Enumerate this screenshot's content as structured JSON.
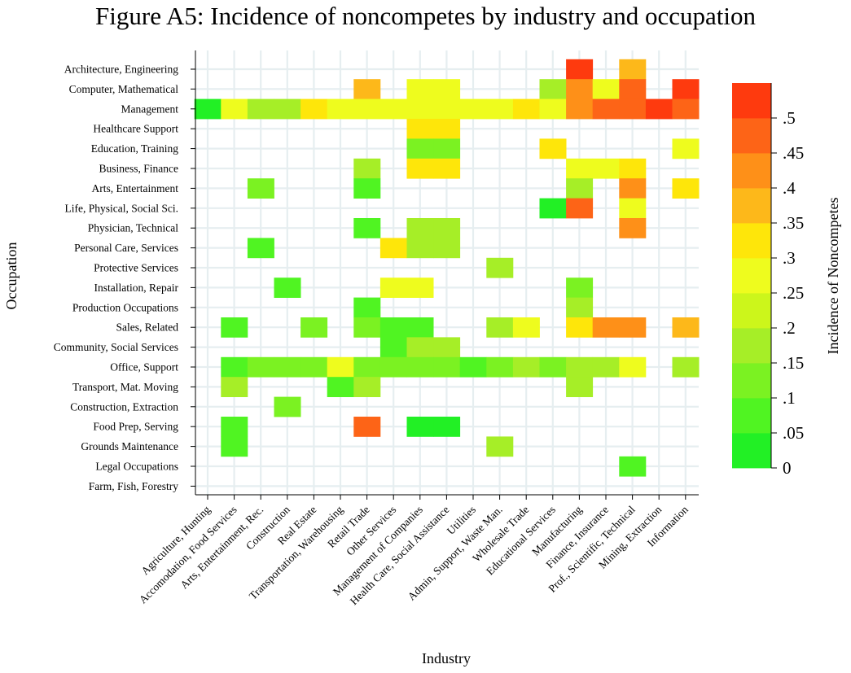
{
  "title": "Figure A5: Incidence of noncompetes by industry and occupation",
  "chart_data": {
    "type": "heatmap",
    "title": "Figure A5: Incidence of noncompetes by industry and occupation",
    "xlabel": "Industry",
    "ylabel": "Occupation",
    "colorbar_label": "Incidence of Noncompetes",
    "colorbar_range": [
      0,
      0.5
    ],
    "colorbar_ticks": [
      "0",
      ".05",
      ".1",
      ".15",
      ".2",
      ".25",
      ".3",
      ".35",
      ".4",
      ".45",
      ".5"
    ],
    "colorbar_colors": [
      "#22f025",
      "#50f422",
      "#7bf222",
      "#a6ee27",
      "#ccf61b",
      "#eefc1e",
      "#fee60a",
      "#fdb81a",
      "#fe9018",
      "#fd6417",
      "#fe3a0e"
    ],
    "grid": true,
    "x_categories": [
      "Agriculture, Hunting",
      "Accomodation, Food Services",
      "Arts, Entertainment, Rec.",
      "Construction",
      "Real Estate",
      "Transportation, Warehousing",
      "Retail Trade",
      "Other Services",
      "Management of Companies",
      "Health Care, Social Assistance",
      "Utilities",
      "Admin, Support, Waste Man.",
      "Wholesale Trade",
      "Educational Services",
      "Manufacturing",
      "Finance, Insurance",
      "Prof., Scientific, Technical",
      "Mining, Extraction",
      "Information"
    ],
    "y_categories": [
      "Architecture, Engineering",
      "Computer, Mathematical",
      "Management",
      "Healthcare Support",
      "Education, Training",
      "Business, Finance",
      "Arts, Entertainment",
      "Life, Physical, Social Sci.",
      "Physician, Technical",
      "Personal Care, Services",
      "Protective Services",
      "Installation, Repair",
      "Production Occupations",
      "Sales, Related",
      "Community, Social Services",
      "Office, Support",
      "Transport, Mat. Moving",
      "Construction, Extraction",
      "Food Prep, Serving",
      "Grounds Maintenance",
      "Legal Occupations",
      "Farm, Fish, Forestry"
    ],
    "cells": [
      {
        "y": "Architecture, Engineering",
        "x": "Manufacturing",
        "value": 0.48
      },
      {
        "y": "Architecture, Engineering",
        "x": "Prof., Scientific, Technical",
        "value": 0.33
      },
      {
        "y": "Computer, Mathematical",
        "x": "Retail Trade",
        "value": 0.33
      },
      {
        "y": "Computer, Mathematical",
        "x": "Management of Companies",
        "value": 0.23
      },
      {
        "y": "Computer, Mathematical",
        "x": "Health Care, Social Assistance",
        "value": 0.23
      },
      {
        "y": "Computer, Mathematical",
        "x": "Educational Services",
        "value": 0.18
      },
      {
        "y": "Computer, Mathematical",
        "x": "Manufacturing",
        "value": 0.38
      },
      {
        "y": "Computer, Mathematical",
        "x": "Finance, Insurance",
        "value": 0.23
      },
      {
        "y": "Computer, Mathematical",
        "x": "Prof., Scientific, Technical",
        "value": 0.43
      },
      {
        "y": "Computer, Mathematical",
        "x": "Information",
        "value": 0.48
      },
      {
        "y": "Management",
        "x": "Agriculture, Hunting",
        "value": 0.03
      },
      {
        "y": "Management",
        "x": "Accomodation, Food Services",
        "value": 0.23
      },
      {
        "y": "Management",
        "x": "Arts, Entertainment, Rec.",
        "value": 0.18
      },
      {
        "y": "Management",
        "x": "Construction",
        "value": 0.18
      },
      {
        "y": "Management",
        "x": "Real Estate",
        "value": 0.28
      },
      {
        "y": "Management",
        "x": "Transportation, Warehousing",
        "value": 0.23
      },
      {
        "y": "Management",
        "x": "Retail Trade",
        "value": 0.23
      },
      {
        "y": "Management",
        "x": "Other Services",
        "value": 0.23
      },
      {
        "y": "Management",
        "x": "Management of Companies",
        "value": 0.23
      },
      {
        "y": "Management",
        "x": "Health Care, Social Assistance",
        "value": 0.23
      },
      {
        "y": "Management",
        "x": "Utilities",
        "value": 0.23
      },
      {
        "y": "Management",
        "x": "Admin, Support, Waste Man.",
        "value": 0.23
      },
      {
        "y": "Management",
        "x": "Wholesale Trade",
        "value": 0.28
      },
      {
        "y": "Management",
        "x": "Educational Services",
        "value": 0.23
      },
      {
        "y": "Management",
        "x": "Manufacturing",
        "value": 0.38
      },
      {
        "y": "Management",
        "x": "Finance, Insurance",
        "value": 0.43
      },
      {
        "y": "Management",
        "x": "Prof., Scientific, Technical",
        "value": 0.43
      },
      {
        "y": "Management",
        "x": "Mining, Extraction",
        "value": 0.48
      },
      {
        "y": "Management",
        "x": "Information",
        "value": 0.43
      },
      {
        "y": "Healthcare Support",
        "x": "Management of Companies",
        "value": 0.28
      },
      {
        "y": "Healthcare Support",
        "x": "Health Care, Social Assistance",
        "value": 0.28
      },
      {
        "y": "Education, Training",
        "x": "Management of Companies",
        "value": 0.13
      },
      {
        "y": "Education, Training",
        "x": "Health Care, Social Assistance",
        "value": 0.13
      },
      {
        "y": "Education, Training",
        "x": "Educational Services",
        "value": 0.28
      },
      {
        "y": "Education, Training",
        "x": "Information",
        "value": 0.23
      },
      {
        "y": "Business, Finance",
        "x": "Retail Trade",
        "value": 0.18
      },
      {
        "y": "Business, Finance",
        "x": "Management of Companies",
        "value": 0.28
      },
      {
        "y": "Business, Finance",
        "x": "Health Care, Social Assistance",
        "value": 0.28
      },
      {
        "y": "Business, Finance",
        "x": "Manufacturing",
        "value": 0.23
      },
      {
        "y": "Business, Finance",
        "x": "Finance, Insurance",
        "value": 0.23
      },
      {
        "y": "Business, Finance",
        "x": "Prof., Scientific, Technical",
        "value": 0.28
      },
      {
        "y": "Arts, Entertainment",
        "x": "Arts, Entertainment, Rec.",
        "value": 0.13
      },
      {
        "y": "Arts, Entertainment",
        "x": "Retail Trade",
        "value": 0.08
      },
      {
        "y": "Arts, Entertainment",
        "x": "Manufacturing",
        "value": 0.18
      },
      {
        "y": "Arts, Entertainment",
        "x": "Prof., Scientific, Technical",
        "value": 0.38
      },
      {
        "y": "Arts, Entertainment",
        "x": "Information",
        "value": 0.28
      },
      {
        "y": "Life, Physical, Social Sci.",
        "x": "Educational Services",
        "value": 0.03
      },
      {
        "y": "Life, Physical, Social Sci.",
        "x": "Manufacturing",
        "value": 0.43
      },
      {
        "y": "Life, Physical, Social Sci.",
        "x": "Prof., Scientific, Technical",
        "value": 0.23
      },
      {
        "y": "Physician, Technical",
        "x": "Retail Trade",
        "value": 0.08
      },
      {
        "y": "Physician, Technical",
        "x": "Management of Companies",
        "value": 0.18
      },
      {
        "y": "Physician, Technical",
        "x": "Health Care, Social Assistance",
        "value": 0.18
      },
      {
        "y": "Physician, Technical",
        "x": "Prof., Scientific, Technical",
        "value": 0.38
      },
      {
        "y": "Personal Care, Services",
        "x": "Arts, Entertainment, Rec.",
        "value": 0.08
      },
      {
        "y": "Personal Care, Services",
        "x": "Other Services",
        "value": 0.28
      },
      {
        "y": "Personal Care, Services",
        "x": "Management of Companies",
        "value": 0.18
      },
      {
        "y": "Personal Care, Services",
        "x": "Health Care, Social Assistance",
        "value": 0.18
      },
      {
        "y": "Protective Services",
        "x": "Admin, Support, Waste Man.",
        "value": 0.18
      },
      {
        "y": "Installation, Repair",
        "x": "Construction",
        "value": 0.08
      },
      {
        "y": "Installation, Repair",
        "x": "Other Services",
        "value": 0.23
      },
      {
        "y": "Installation, Repair",
        "x": "Management of Companies",
        "value": 0.23
      },
      {
        "y": "Installation, Repair",
        "x": "Manufacturing",
        "value": 0.13
      },
      {
        "y": "Production Occupations",
        "x": "Retail Trade",
        "value": 0.08
      },
      {
        "y": "Production Occupations",
        "x": "Manufacturing",
        "value": 0.18
      },
      {
        "y": "Sales, Related",
        "x": "Accomodation, Food Services",
        "value": 0.08
      },
      {
        "y": "Sales, Related",
        "x": "Real Estate",
        "value": 0.13
      },
      {
        "y": "Sales, Related",
        "x": "Retail Trade",
        "value": 0.13
      },
      {
        "y": "Sales, Related",
        "x": "Other Services",
        "value": 0.08
      },
      {
        "y": "Sales, Related",
        "x": "Management of Companies",
        "value": 0.08
      },
      {
        "y": "Sales, Related",
        "x": "Admin, Support, Waste Man.",
        "value": 0.18
      },
      {
        "y": "Sales, Related",
        "x": "Wholesale Trade",
        "value": 0.23
      },
      {
        "y": "Sales, Related",
        "x": "Manufacturing",
        "value": 0.28
      },
      {
        "y": "Sales, Related",
        "x": "Finance, Insurance",
        "value": 0.38
      },
      {
        "y": "Sales, Related",
        "x": "Prof., Scientific, Technical",
        "value": 0.38
      },
      {
        "y": "Sales, Related",
        "x": "Information",
        "value": 0.33
      },
      {
        "y": "Community, Social Services",
        "x": "Other Services",
        "value": 0.08
      },
      {
        "y": "Community, Social Services",
        "x": "Management of Companies",
        "value": 0.18
      },
      {
        "y": "Community, Social Services",
        "x": "Health Care, Social Assistance",
        "value": 0.18
      },
      {
        "y": "Office, Support",
        "x": "Accomodation, Food Services",
        "value": 0.08
      },
      {
        "y": "Office, Support",
        "x": "Arts, Entertainment, Rec.",
        "value": 0.13
      },
      {
        "y": "Office, Support",
        "x": "Construction",
        "value": 0.13
      },
      {
        "y": "Office, Support",
        "x": "Real Estate",
        "value": 0.13
      },
      {
        "y": "Office, Support",
        "x": "Transportation, Warehousing",
        "value": 0.23
      },
      {
        "y": "Office, Support",
        "x": "Retail Trade",
        "value": 0.13
      },
      {
        "y": "Office, Support",
        "x": "Other Services",
        "value": 0.13
      },
      {
        "y": "Office, Support",
        "x": "Management of Companies",
        "value": 0.13
      },
      {
        "y": "Office, Support",
        "x": "Health Care, Social Assistance",
        "value": 0.13
      },
      {
        "y": "Office, Support",
        "x": "Utilities",
        "value": 0.08
      },
      {
        "y": "Office, Support",
        "x": "Admin, Support, Waste Man.",
        "value": 0.13
      },
      {
        "y": "Office, Support",
        "x": "Wholesale Trade",
        "value": 0.18
      },
      {
        "y": "Office, Support",
        "x": "Educational Services",
        "value": 0.13
      },
      {
        "y": "Office, Support",
        "x": "Manufacturing",
        "value": 0.18
      },
      {
        "y": "Office, Support",
        "x": "Finance, Insurance",
        "value": 0.18
      },
      {
        "y": "Office, Support",
        "x": "Prof., Scientific, Technical",
        "value": 0.23
      },
      {
        "y": "Office, Support",
        "x": "Information",
        "value": 0.18
      },
      {
        "y": "Transport, Mat. Moving",
        "x": "Accomodation, Food Services",
        "value": 0.18
      },
      {
        "y": "Transport, Mat. Moving",
        "x": "Transportation, Warehousing",
        "value": 0.08
      },
      {
        "y": "Transport, Mat. Moving",
        "x": "Retail Trade",
        "value": 0.18
      },
      {
        "y": "Transport, Mat. Moving",
        "x": "Manufacturing",
        "value": 0.18
      },
      {
        "y": "Construction, Extraction",
        "x": "Construction",
        "value": 0.13
      },
      {
        "y": "Food Prep, Serving",
        "x": "Accomodation, Food Services",
        "value": 0.08
      },
      {
        "y": "Food Prep, Serving",
        "x": "Retail Trade",
        "value": 0.43
      },
      {
        "y": "Food Prep, Serving",
        "x": "Management of Companies",
        "value": 0.03
      },
      {
        "y": "Food Prep, Serving",
        "x": "Health Care, Social Assistance",
        "value": 0.03
      },
      {
        "y": "Grounds Maintenance",
        "x": "Accomodation, Food Services",
        "value": 0.08
      },
      {
        "y": "Grounds Maintenance",
        "x": "Admin, Support, Waste Man.",
        "value": 0.18
      },
      {
        "y": "Legal Occupations",
        "x": "Prof., Scientific, Technical",
        "value": 0.08
      }
    ]
  }
}
